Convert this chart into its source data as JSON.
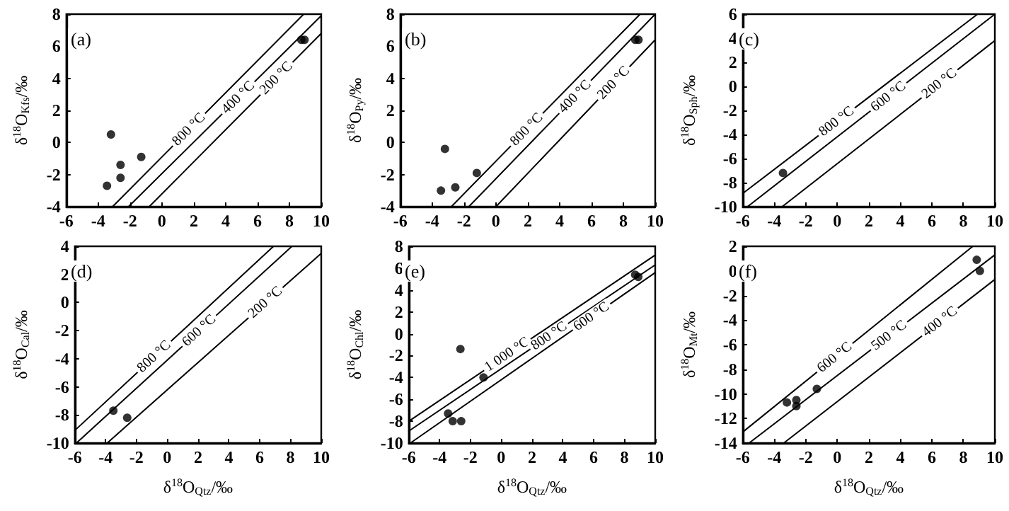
{
  "chart_data": [
    {
      "type": "scatter",
      "annotations": [
        "(a)"
      ],
      "ylabel": "δ$^{18}$O$_{Kfs}$/‰",
      "xlim": [
        -6,
        10
      ],
      "xticks": [
        -6,
        -4,
        -2,
        0,
        2,
        4,
        6,
        8,
        10
      ],
      "ylim": [
        -4,
        8
      ],
      "yticks": [
        -4,
        -2,
        0,
        2,
        4,
        6,
        8
      ],
      "series": [
        {
          "marker": "circle",
          "color": "#000000",
          "x": [
            -3.45,
            -3.2,
            -2.6,
            -2.6,
            -1.3,
            8.75,
            8.95
          ],
          "values": [
            -2.7,
            0.5,
            -1.4,
            -2.2,
            -0.9,
            6.4,
            6.4
          ]
        },
        {
          "type": "line",
          "name": "800 °C",
          "color": "#000000",
          "x": [
            -3.1,
            8.9
          ],
          "values": [
            -4,
            8
          ]
        },
        {
          "type": "line",
          "name": "400 °C",
          "color": "#000000",
          "x": [
            -2.1,
            10
          ],
          "values": [
            -4,
            7.9
          ]
        },
        {
          "type": "line",
          "name": "200 °C",
          "color": "#000000",
          "x": [
            -0.8,
            10
          ],
          "values": [
            -4,
            6.8
          ]
        }
      ]
    },
    {
      "type": "scatter",
      "annotations": [
        "(b)"
      ],
      "ylabel": "δ$^{18}$O$_{Py}$/‰",
      "xlim": [
        -6,
        10
      ],
      "xticks": [
        -6,
        -4,
        -2,
        0,
        2,
        4,
        6,
        8,
        10
      ],
      "ylim": [
        -4,
        8
      ],
      "yticks": [
        -4,
        -2,
        0,
        2,
        4,
        6,
        8
      ],
      "series": [
        {
          "marker": "circle",
          "color": "#000000",
          "x": [
            -3.2,
            -3.45,
            -2.55,
            -1.2,
            8.75,
            8.95
          ],
          "values": [
            -0.4,
            -3.0,
            -2.8,
            -1.9,
            6.4,
            6.4
          ]
        },
        {
          "type": "line",
          "name": "800 °C",
          "color": "#000000",
          "x": [
            -2.8,
            9.05
          ],
          "values": [
            -4,
            8
          ]
        },
        {
          "type": "line",
          "name": "400 °C",
          "color": "#000000",
          "x": [
            -1.7,
            10
          ],
          "values": [
            -4,
            8
          ]
        },
        {
          "type": "line",
          "name": "200 °C",
          "color": "#000000",
          "x": [
            0,
            10
          ],
          "values": [
            -4,
            6.4
          ]
        }
      ]
    },
    {
      "type": "scatter",
      "annotations": [
        "(c)"
      ],
      "ylabel": "δ$^{18}$O$_{Sph}$/‰",
      "xlim": [
        -6,
        10
      ],
      "xticks": [
        -6,
        -4,
        -2,
        0,
        2,
        4,
        6,
        8,
        10
      ],
      "ylim": [
        -10,
        6
      ],
      "yticks": [
        -10,
        -8,
        -6,
        -4,
        -2,
        0,
        2,
        4,
        6
      ],
      "series": [
        {
          "marker": "circle",
          "color": "#000000",
          "x": [
            -3.45
          ],
          "values": [
            -7.2
          ]
        },
        {
          "type": "line",
          "name": "800 °C",
          "color": "#000000",
          "x": [
            -6,
            8.9
          ],
          "values": [
            -8.9,
            6
          ]
        },
        {
          "type": "line",
          "name": "600 °C",
          "color": "#000000",
          "x": [
            -5.7,
            10
          ],
          "values": [
            -10,
            6
          ]
        },
        {
          "type": "line",
          "name": "200 °C",
          "color": "#000000",
          "x": [
            -3.5,
            10
          ],
          "values": [
            -10,
            3.8
          ]
        }
      ]
    },
    {
      "type": "scatter",
      "annotations": [
        "(d)"
      ],
      "xlabel": "δ$^{18}$O$_{Qtz}$/‰",
      "ylabel": "δ$^{18}$O$_{Cal}$/‰",
      "xlim": [
        -6,
        10
      ],
      "xticks": [
        -6,
        -4,
        -2,
        0,
        2,
        4,
        6,
        8,
        10
      ],
      "ylim": [
        -10,
        4
      ],
      "yticks": [
        -10,
        -8,
        -6,
        -4,
        -2,
        0,
        2,
        4
      ],
      "series": [
        {
          "marker": "circle",
          "color": "#000000",
          "x": [
            -3.5,
            -2.6
          ],
          "values": [
            -7.7,
            -8.2
          ]
        },
        {
          "type": "line",
          "name": "800 °C",
          "color": "#000000",
          "x": [
            -6,
            6.9
          ],
          "values": [
            -9.1,
            4
          ]
        },
        {
          "type": "line",
          "name": "600 °C",
          "color": "#000000",
          "x": [
            -5.9,
            8.1
          ],
          "values": [
            -10,
            4
          ]
        },
        {
          "type": "line",
          "name": "200 °C",
          "color": "#000000",
          "x": [
            -3.9,
            10
          ],
          "values": [
            -10,
            3.5
          ]
        }
      ]
    },
    {
      "type": "scatter",
      "annotations": [
        "(e)"
      ],
      "xlabel": "δ$^{18}$O$_{Qtz}$/‰",
      "ylabel": "δ$^{18}$O$_{Chl}$/‰",
      "xlim": [
        -6,
        10
      ],
      "xticks": [
        -6,
        -4,
        -2,
        0,
        2,
        4,
        6,
        8,
        10
      ],
      "ylim": [
        -10,
        8
      ],
      "yticks": [
        -10,
        -8,
        -6,
        -4,
        -2,
        0,
        2,
        4,
        6,
        8
      ],
      "series": [
        {
          "marker": "circle",
          "color": "#000000",
          "x": [
            -2.65,
            -1.15,
            -3.45,
            -3.15,
            -2.6,
            8.7,
            8.9
          ],
          "values": [
            -1.4,
            -4.0,
            -7.3,
            -8.0,
            -8.0,
            5.4,
            5.2
          ]
        },
        {
          "type": "line",
          "name": "1 000 °C",
          "color": "#000000",
          "x": [
            -6,
            10
          ],
          "values": [
            -8,
            7.2
          ]
        },
        {
          "type": "line",
          "name": "800 °C",
          "color": "#000000",
          "x": [
            -6,
            10
          ],
          "values": [
            -8.9,
            6.3
          ]
        },
        {
          "type": "line",
          "name": "600 °C",
          "color": "#000000",
          "x": [
            -5.9,
            10
          ],
          "values": [
            -10,
            5.6
          ]
        }
      ]
    },
    {
      "type": "scatter",
      "annotations": [
        "(f)"
      ],
      "xlabel": "δ$^{18}$O$_{Qtz}$/‰",
      "ylabel": "δ$^{18}$O$_{Mt}$/‰",
      "xlim": [
        -6,
        10
      ],
      "xticks": [
        -6,
        -4,
        -2,
        0,
        2,
        4,
        6,
        8,
        10
      ],
      "ylim": [
        -14,
        2
      ],
      "yticks": [
        -14,
        -12,
        -10,
        -8,
        -6,
        -4,
        -2,
        0,
        2
      ],
      "series": [
        {
          "marker": "circle",
          "color": "#000000",
          "x": [
            -3.2,
            -2.6,
            -2.6,
            -1.3,
            8.85,
            9.05
          ],
          "values": [
            -10.7,
            -10.5,
            -11.0,
            -9.6,
            0.9,
            0.0
          ]
        },
        {
          "type": "line",
          "name": "600 °C",
          "color": "#000000",
          "x": [
            -6,
            8.6
          ],
          "values": [
            -13.1,
            2
          ]
        },
        {
          "type": "line",
          "name": "500 °C",
          "color": "#000000",
          "x": [
            -5.6,
            10
          ],
          "values": [
            -14,
            1.3
          ]
        },
        {
          "type": "line",
          "name": "400 °C",
          "color": "#000000",
          "x": [
            -3.4,
            10
          ],
          "values": [
            -14,
            -0.7
          ]
        }
      ]
    }
  ]
}
